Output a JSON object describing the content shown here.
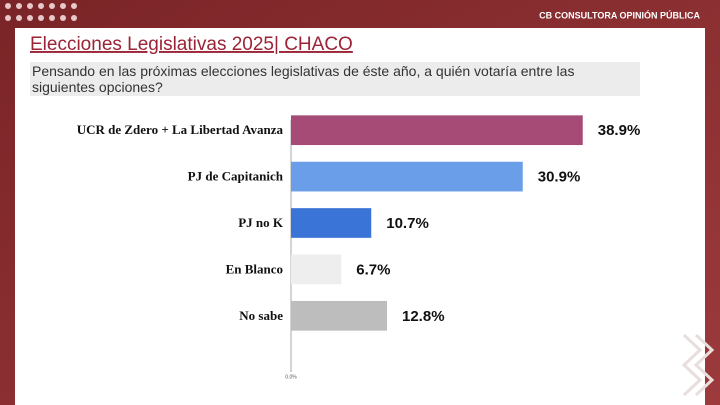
{
  "brand": "CB CONSULTORA OPINIÓN PÚBLICA",
  "chart_data": {
    "type": "bar",
    "orientation": "horizontal",
    "title": "Elecciones Legislativas 2025| CHACO",
    "subtitle": "Pensando en las próximas elecciones legislativas de éste año, a quién votaría entre las siguientes opciones?",
    "categories": [
      "UCR de Zdero + La Libertad Avanza",
      "PJ de Capitanich",
      "PJ no K",
      "En Blanco",
      "No sabe"
    ],
    "values": [
      38.9,
      30.9,
      10.7,
      6.7,
      12.8
    ],
    "value_labels": [
      "38.9%",
      "30.9%",
      "10.7%",
      "6.7%",
      "12.8%"
    ],
    "colors": [
      "#a64b76",
      "#6b9ee8",
      "#3a74d6",
      "#eeeeee",
      "#bdbdbd"
    ],
    "xlim": [
      0,
      50
    ],
    "xticks": [
      {
        "value": 0,
        "label": "0.0%"
      }
    ],
    "grid": false
  }
}
